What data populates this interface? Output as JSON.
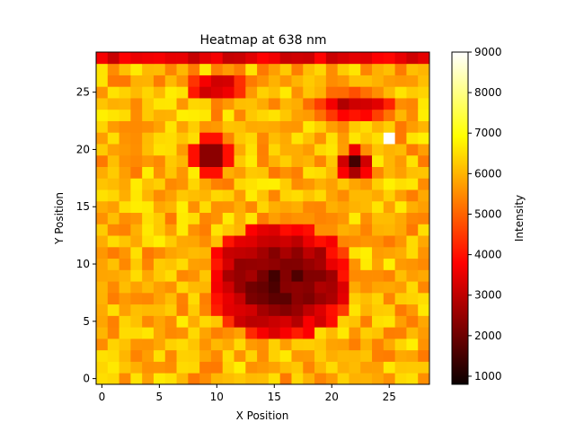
{
  "chart_data": {
    "type": "heatmap",
    "title": "Heatmap at 638 nm",
    "xlabel": "X Position",
    "ylabel": "Y Position",
    "colorbar_label": "Intensity",
    "colormap": "hot",
    "origin": "lower",
    "nx": 29,
    "ny": 29,
    "xlim": [
      -0.5,
      28.5
    ],
    "ylim": [
      -0.5,
      28.5
    ],
    "xticks": [
      0,
      5,
      10,
      15,
      20,
      25
    ],
    "yticks": [
      0,
      5,
      10,
      15,
      20,
      25
    ],
    "vmin": 800,
    "vmax": 9000,
    "colorbar_ticks": [
      1000,
      2000,
      3000,
      4000,
      5000,
      6000,
      7000,
      8000,
      9000
    ],
    "grid": false,
    "background_level": 6000,
    "features": [
      {
        "shape": "row",
        "rows": [
          28
        ],
        "cols": [
          0,
          28
        ],
        "value": 3500,
        "description": "darker top row"
      },
      {
        "shape": "blob",
        "center": [
          9.5,
          19.5
        ],
        "radius": 1.6,
        "value": 1200
      },
      {
        "shape": "blob",
        "center": [
          22,
          18.8
        ],
        "radius": 1.4,
        "value": 1200
      },
      {
        "shape": "arc",
        "center": [
          10,
          25.5
        ],
        "rx": 3.2,
        "ry": 1.4,
        "value": 2600
      },
      {
        "shape": "arc",
        "center": [
          22,
          23.8
        ],
        "rx": 4.2,
        "ry": 1.4,
        "value": 2600
      },
      {
        "shape": "mouth",
        "center": [
          15.5,
          8.5
        ],
        "rx": 6.3,
        "ry": 5.2,
        "value": 1500
      },
      {
        "shape": "point",
        "cell": [
          25,
          21
        ],
        "value": 9000
      }
    ]
  }
}
